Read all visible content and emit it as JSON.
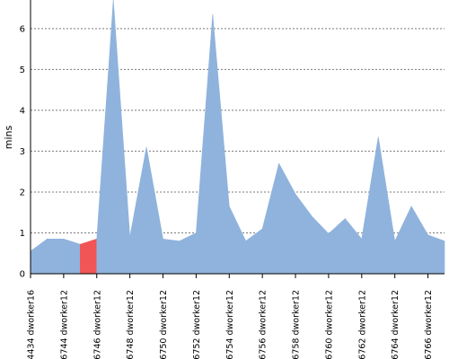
{
  "chart_data": {
    "type": "area",
    "ylabel": "mins",
    "ylim": [
      0,
      6.7
    ],
    "yticks": [
      0,
      1,
      2,
      3,
      4,
      5,
      6
    ],
    "grid": true,
    "area_color": "#8fb3dc",
    "highlight_color": "#f25555",
    "highlight_index": 3,
    "x_tick_labels": [
      "#4434 dworker16",
      "#6744 dworker12",
      "#6746 dworker12",
      "#6748 dworker12",
      "#6750 dworker12",
      "#6752 dworker12",
      "#6754 dworker12",
      "#6756 dworker12",
      "#6758 dworker12",
      "#6760 dworker12",
      "#6762 dworker12",
      "#6764 dworker12",
      "#6766 dworker12"
    ],
    "values": [
      0.55,
      0.85,
      0.85,
      0.72,
      0.85,
      6.7,
      0.9,
      3.1,
      0.85,
      0.8,
      1.0,
      6.35,
      1.65,
      0.8,
      1.1,
      2.7,
      1.95,
      1.4,
      0.98,
      1.35,
      0.85,
      3.35,
      0.8,
      1.65,
      0.95,
      0.8
    ]
  }
}
